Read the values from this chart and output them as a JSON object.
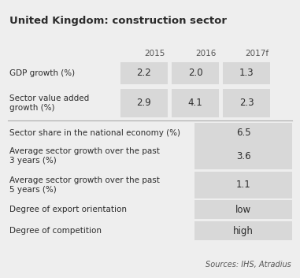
{
  "title": "United Kingdom: construction sector",
  "background_color": "#eeeeee",
  "cell_bg": "#d8d8d8",
  "years": [
    "2015",
    "2016",
    "2017f"
  ],
  "top_rows": [
    {
      "label": "GDP growth (%)",
      "values": [
        "2.2",
        "2.0",
        "1.3"
      ]
    },
    {
      "label": "Sector value added\ngrowth (%)",
      "values": [
        "2.9",
        "4.1",
        "2.3"
      ]
    }
  ],
  "bottom_rows": [
    {
      "label": "Sector share in the national economy (%)",
      "value": "6.5"
    },
    {
      "label": "Average sector growth over the past\n3 years (%)",
      "value": "3.6"
    },
    {
      "label": "Average sector growth over the past\n5 years (%)",
      "value": "1.1"
    },
    {
      "label": "Degree of export orientation",
      "value": "low"
    },
    {
      "label": "Degree of competition",
      "value": "high"
    }
  ],
  "source_text": "Sources: IHS, Atradius",
  "title_fontsize": 9.5,
  "label_fontsize": 7.5,
  "value_fontsize": 8.5,
  "year_fontsize": 7.5,
  "source_fontsize": 7.0,
  "text_color": "#2c2c2c",
  "header_color": "#555555"
}
